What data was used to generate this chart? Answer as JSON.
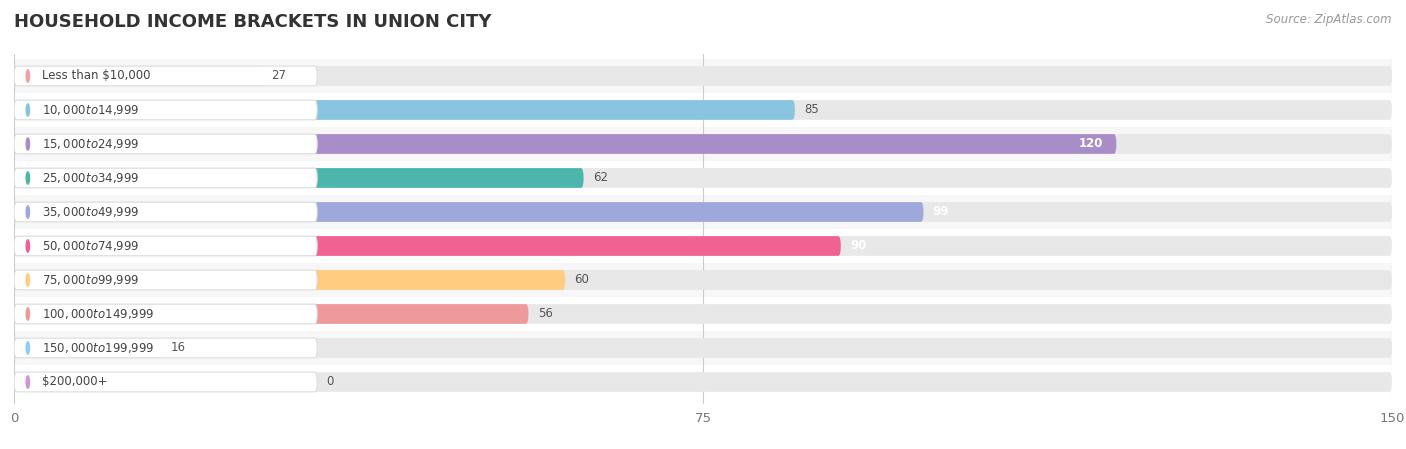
{
  "title": "HOUSEHOLD INCOME BRACKETS IN UNION CITY",
  "source": "Source: ZipAtlas.com",
  "categories": [
    "Less than $10,000",
    "$10,000 to $14,999",
    "$15,000 to $24,999",
    "$25,000 to $34,999",
    "$35,000 to $49,999",
    "$50,000 to $74,999",
    "$75,000 to $99,999",
    "$100,000 to $149,999",
    "$150,000 to $199,999",
    "$200,000+"
  ],
  "values": [
    27,
    85,
    120,
    62,
    99,
    90,
    60,
    56,
    16,
    0
  ],
  "bar_colors": [
    "#F4A0A0",
    "#89C4E1",
    "#A98DC8",
    "#4DB6AC",
    "#9FA8DA",
    "#F06292",
    "#FFCC80",
    "#EF9A9A",
    "#90CAF9",
    "#CE93D8"
  ],
  "label_colors": [
    "#555555",
    "#555555",
    "#ffffff",
    "#555555",
    "#ffffff",
    "#ffffff",
    "#555555",
    "#555555",
    "#555555",
    "#555555"
  ],
  "row_colors": [
    "#f7f7f7",
    "#ffffff",
    "#f7f7f7",
    "#ffffff",
    "#f7f7f7",
    "#ffffff",
    "#f7f7f7",
    "#ffffff",
    "#f7f7f7",
    "#ffffff"
  ],
  "bg_color": "#ffffff",
  "bar_track_color": "#e8e8e8",
  "xlim": [
    0,
    150
  ],
  "xticks": [
    0,
    75,
    150
  ],
  "bar_height": 0.58,
  "figsize": [
    14.06,
    4.49
  ],
  "dpi": 100
}
